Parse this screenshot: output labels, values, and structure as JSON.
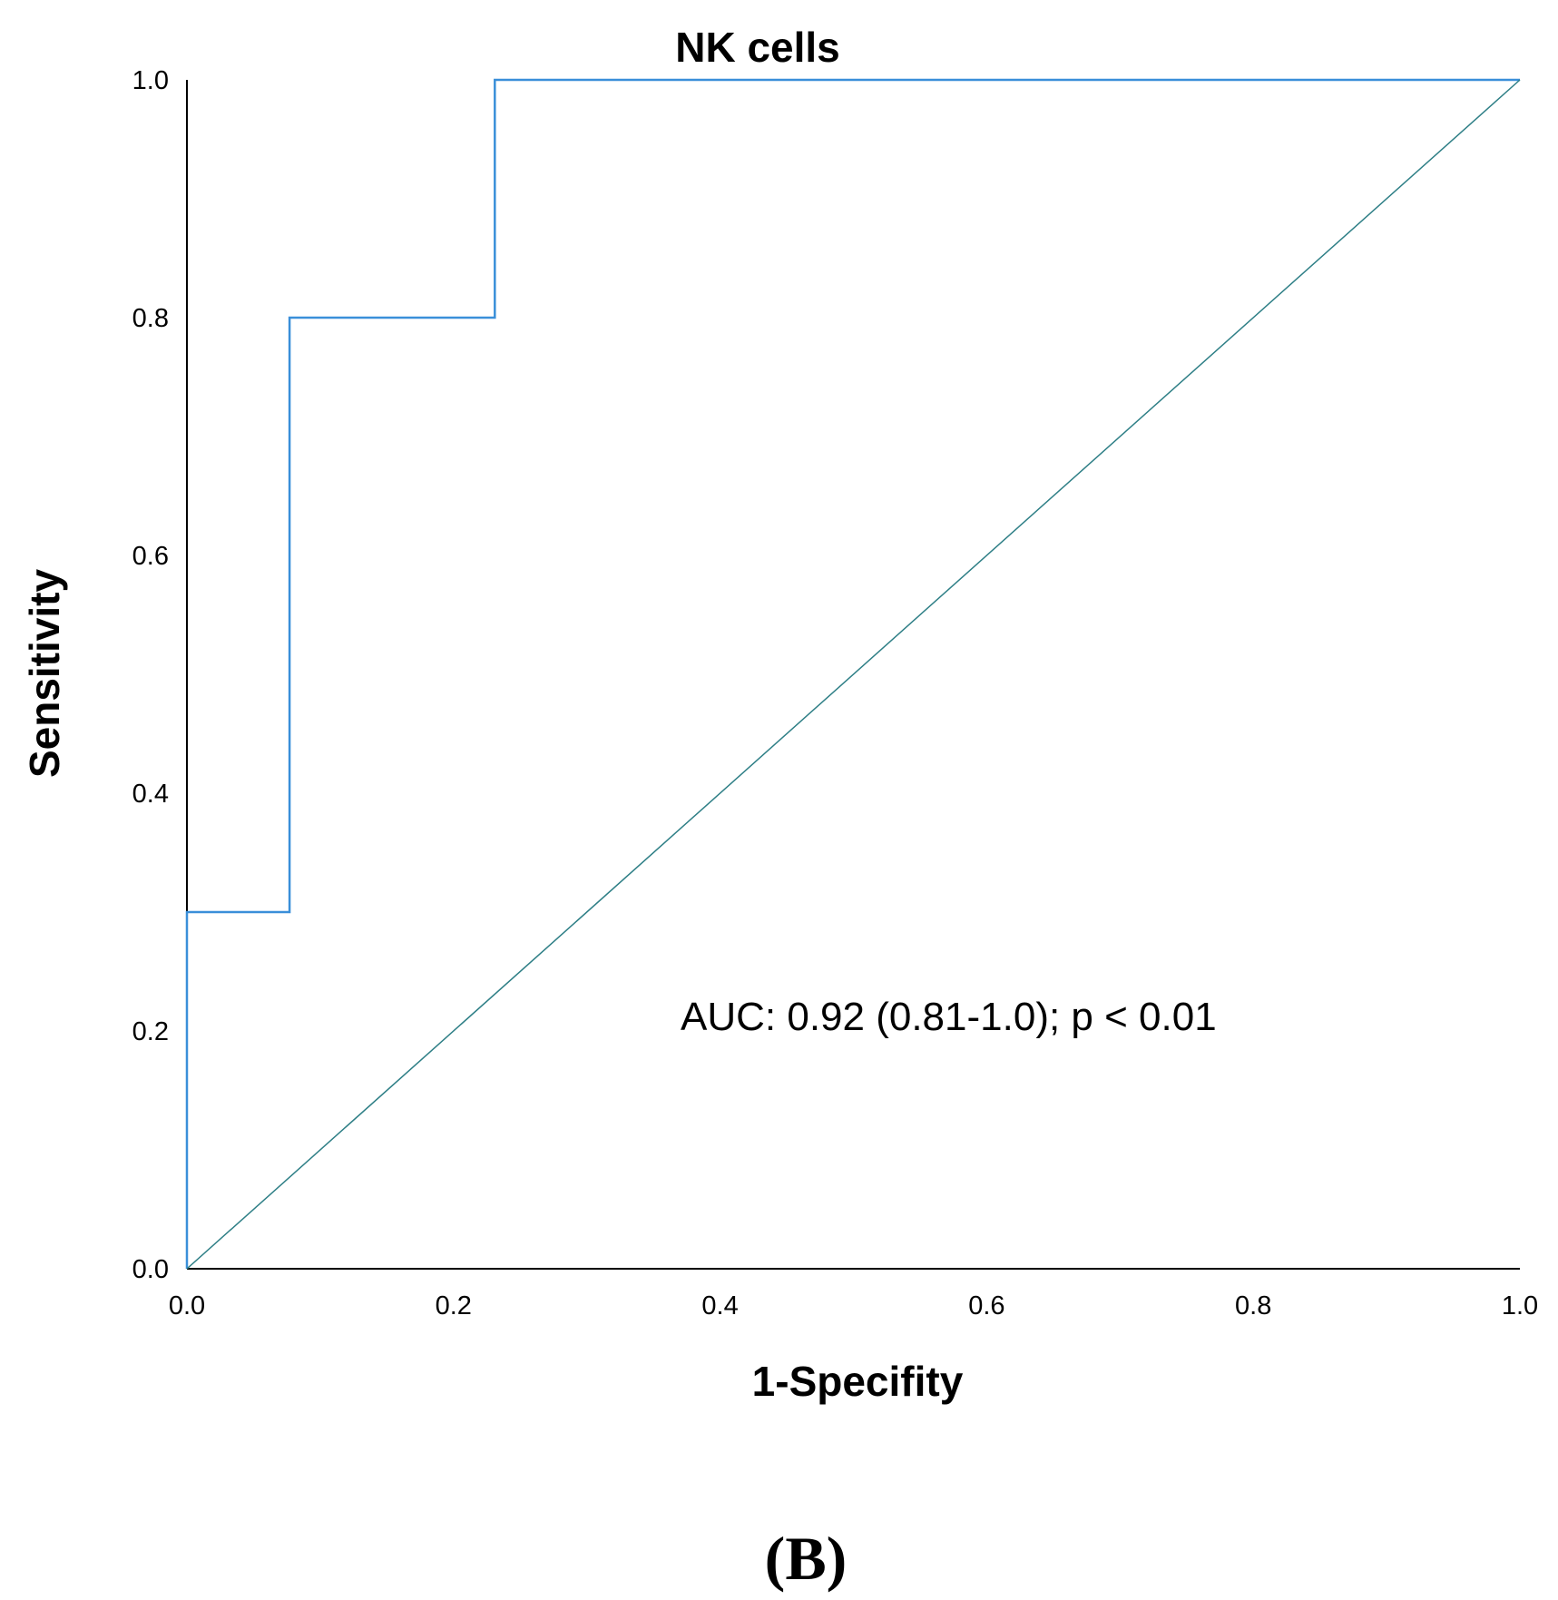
{
  "chart_data": {
    "type": "line",
    "title": "NK cells",
    "xlabel": "1-Specifity",
    "ylabel": "Sensitivity",
    "xlim": [
      0.0,
      1.0
    ],
    "ylim": [
      0.0,
      1.0
    ],
    "x_ticks": [
      "0.0",
      "0.2",
      "0.4",
      "0.6",
      "0.8",
      "1.0"
    ],
    "y_ticks": [
      "0.0",
      "0.2",
      "0.4",
      "0.6",
      "0.8",
      "1.0"
    ],
    "grid": false,
    "series": [
      {
        "name": "ROC curve",
        "color": "#3a8fd9",
        "x": [
          0.0,
          0.0,
          0.077,
          0.077,
          0.231,
          0.231,
          1.0
        ],
        "y": [
          0.0,
          0.3,
          0.3,
          0.8,
          0.8,
          1.0,
          1.0
        ]
      },
      {
        "name": "Reference line",
        "color": "#2e7f86",
        "x": [
          0.0,
          1.0
        ],
        "y": [
          0.0,
          1.0
        ]
      }
    ],
    "annotation": "AUC: 0.92 (0.81-1.0); p < 0.01",
    "panel_label": "(B)"
  }
}
